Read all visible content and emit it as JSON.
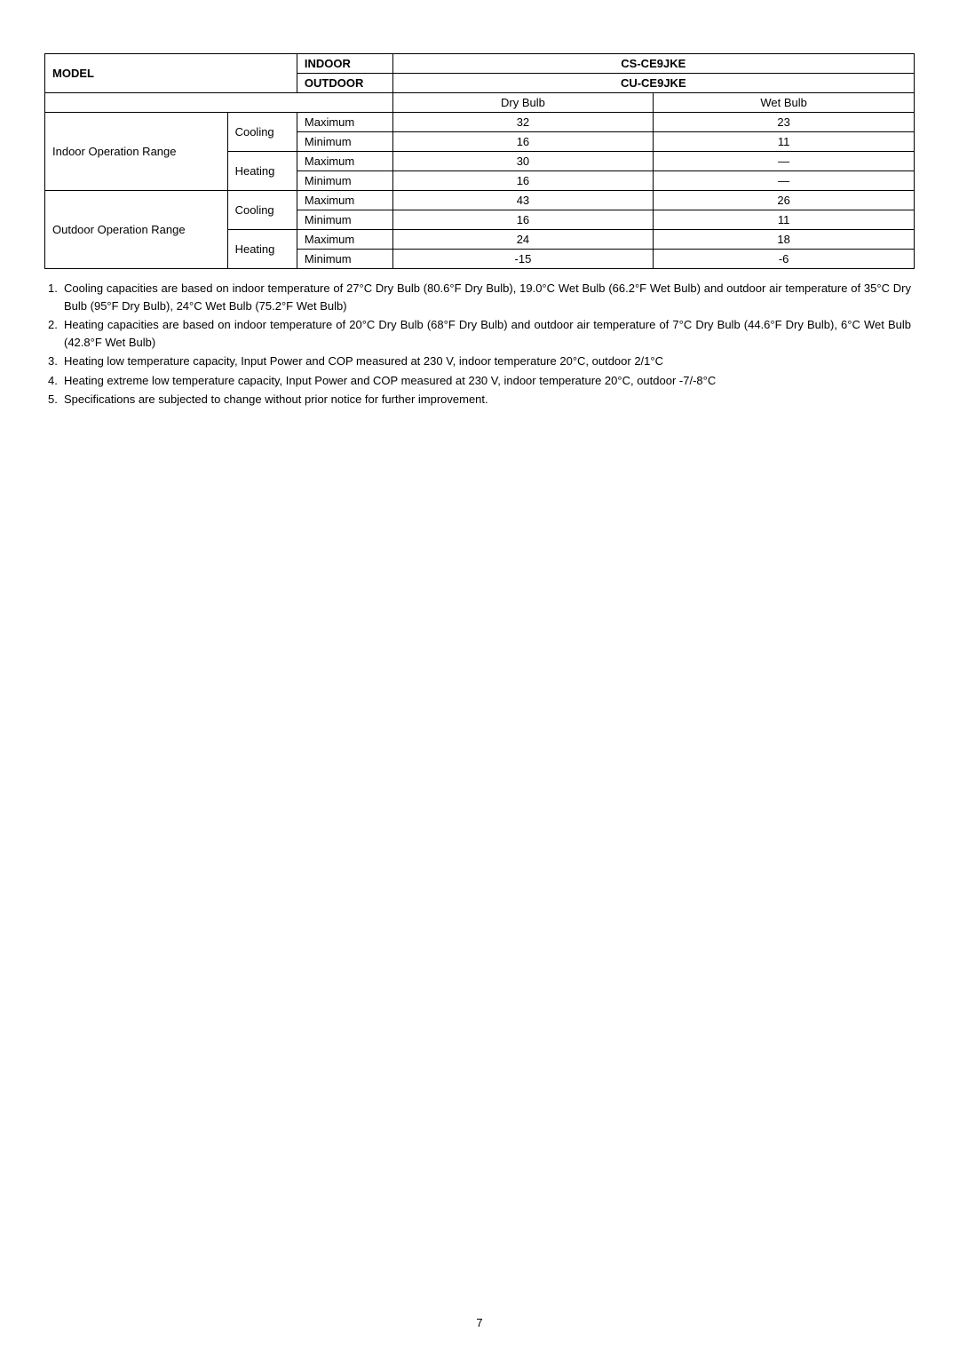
{
  "table": {
    "header": {
      "model_label": "MODEL",
      "indoor_label": "INDOOR",
      "outdoor_label": "OUTDOOR",
      "indoor_model": "CS-CE9JKE",
      "outdoor_model": "CU-CE9JKE",
      "dry_bulb": "Dry Bulb",
      "wet_bulb": "Wet Bulb"
    },
    "rows": {
      "indoor_range_label": "Indoor Operation Range",
      "outdoor_range_label": "Outdoor Operation Range",
      "cooling_label": "Cooling",
      "heating_label": "Heating",
      "max_label": "Maximum",
      "min_label": "Minimum",
      "indoor_cooling_max_dry": "32",
      "indoor_cooling_max_wet": "23",
      "indoor_cooling_min_dry": "16",
      "indoor_cooling_min_wet": "11",
      "indoor_heating_max_dry": "30",
      "indoor_heating_max_wet": "—",
      "indoor_heating_min_dry": "16",
      "indoor_heating_min_wet": "—",
      "outdoor_cooling_max_dry": "43",
      "outdoor_cooling_max_wet": "26",
      "outdoor_cooling_min_dry": "16",
      "outdoor_cooling_min_wet": "11",
      "outdoor_heating_max_dry": "24",
      "outdoor_heating_max_wet": "18",
      "outdoor_heating_min_dry": "-15",
      "outdoor_heating_min_wet": "-6"
    }
  },
  "notes": {
    "n1_num": "1.",
    "n1_text": "Cooling capacities are based on indoor temperature of 27°C Dry Bulb (80.6°F Dry Bulb), 19.0°C Wet Bulb (66.2°F Wet Bulb) and outdoor air temperature of 35°C Dry Bulb (95°F Dry Bulb), 24°C Wet Bulb (75.2°F Wet Bulb)",
    "n2_num": "2.",
    "n2_text": "Heating capacities are based on indoor temperature of 20°C Dry Bulb (68°F Dry Bulb) and outdoor air temperature of 7°C Dry Bulb (44.6°F Dry Bulb), 6°C Wet Bulb (42.8°F Wet Bulb)",
    "n3_num": "3.",
    "n3_text": "Heating low temperature capacity, Input Power and COP measured at 230 V, indoor temperature 20°C, outdoor 2/1°C",
    "n4_num": "4.",
    "n4_text": "Heating extreme low temperature capacity, Input Power and COP measured at 230 V, indoor temperature 20°C, outdoor -7/-8°C",
    "n5_num": "5.",
    "n5_text": "Specifications are subjected to change without prior notice for further improvement."
  },
  "page_number": "7"
}
